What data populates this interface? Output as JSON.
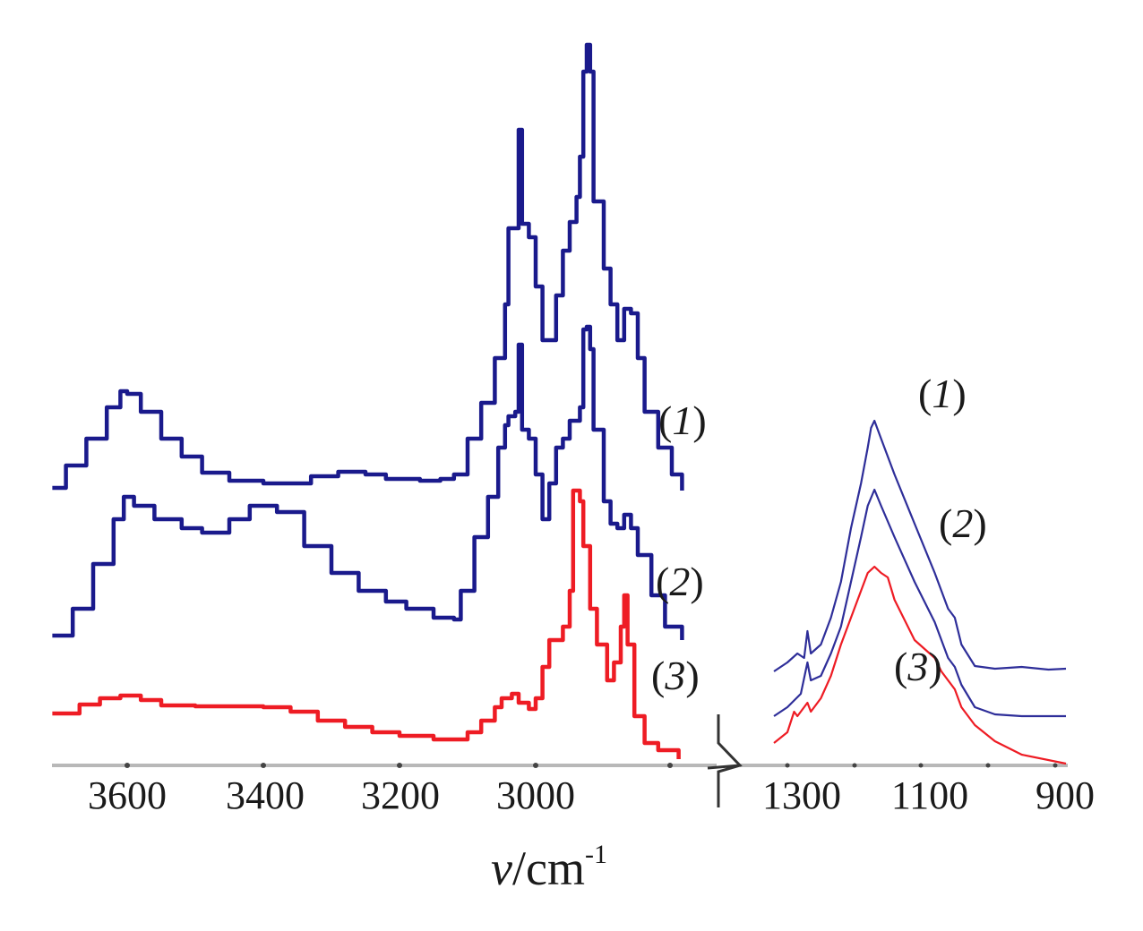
{
  "chart_data": {
    "type": "line",
    "title": "",
    "xlabel": "v/cm-1",
    "xlabel_parts": {
      "var": "v",
      "unit": "/cm",
      "exp": "-1"
    },
    "ylabel": "",
    "axis_break": true,
    "grid": false,
    "legend": "inline labels",
    "colors": {
      "series1": "#1a1a8c",
      "series2": "#1a1a8c",
      "series3": "#ee1c24",
      "right_blue": "#2e2e99",
      "axis": "#b8b8b8",
      "text": "#1a1a1a"
    },
    "panels": [
      {
        "name": "left",
        "xlim": [
          3710,
          2785
        ],
        "ticks": [
          3600,
          3400,
          3200,
          3000
        ],
        "tick_labels": [
          "3600",
          "3400",
          "3200",
          "3000"
        ],
        "minor_tick_at": [
          2800
        ],
        "series": [
          {
            "name": "(1)",
            "color": "#1a1a8c",
            "x": [
              3710,
              3690,
              3660,
              3630,
              3610,
              3600,
              3580,
              3550,
              3520,
              3490,
              3450,
              3400,
              3370,
              3330,
              3290,
              3250,
              3220,
              3170,
              3140,
              3120,
              3100,
              3080,
              3060,
              3045,
              3040,
              3030,
              3025,
              3020,
              3010,
              3000,
              2990,
              2970,
              2960,
              2950,
              2940,
              2935,
              2930,
              2925,
              2920,
              2915,
              2900,
              2890,
              2880,
              2870,
              2860,
              2850,
              2840,
              2820,
              2800,
              2785
            ],
            "y": [
              3.1,
              3.35,
              3.65,
              4.0,
              4.18,
              4.15,
              3.95,
              3.65,
              3.45,
              3.27,
              3.18,
              3.15,
              3.15,
              3.23,
              3.28,
              3.25,
              3.2,
              3.18,
              3.2,
              3.25,
              3.65,
              4.05,
              4.55,
              5.15,
              6.0,
              6.0,
              7.1,
              6.05,
              5.9,
              5.35,
              4.75,
              5.25,
              5.75,
              6.07,
              6.35,
              6.8,
              7.75,
              8.05,
              7.75,
              6.3,
              5.55,
              5.15,
              4.75,
              5.1,
              5.05,
              4.55,
              3.95,
              3.55,
              3.25,
              3.07
            ]
          },
          {
            "name": "(2)",
            "color": "#1a1a8c",
            "x": [
              3710,
              3680,
              3650,
              3620,
              3605,
              3590,
              3560,
              3520,
              3490,
              3450,
              3420,
              3400,
              3380,
              3340,
              3300,
              3260,
              3220,
              3190,
              3150,
              3120,
              3110,
              3090,
              3070,
              3055,
              3045,
              3040,
              3030,
              3025,
              3020,
              3010,
              3000,
              2990,
              2980,
              2970,
              2960,
              2950,
              2935,
              2930,
              2925,
              2920,
              2915,
              2900,
              2890,
              2880,
              2870,
              2860,
              2850,
              2830,
              2810,
              2785
            ],
            "y": [
              1.45,
              1.75,
              2.25,
              2.75,
              3.0,
              2.9,
              2.75,
              2.65,
              2.6,
              2.75,
              2.9,
              2.9,
              2.83,
              2.45,
              2.15,
              1.95,
              1.83,
              1.75,
              1.65,
              1.63,
              1.95,
              2.55,
              3.0,
              3.55,
              3.8,
              3.9,
              3.95,
              4.7,
              3.75,
              3.65,
              3.25,
              2.75,
              3.15,
              3.55,
              3.65,
              3.85,
              4.0,
              4.87,
              4.9,
              4.65,
              3.75,
              2.95,
              2.7,
              2.65,
              2.8,
              2.65,
              2.35,
              1.9,
              1.55,
              1.4
            ]
          },
          {
            "name": "(3)",
            "color": "#ee1c24",
            "x": [
              3710,
              3670,
              3640,
              3610,
              3580,
              3550,
              3500,
              3400,
              3360,
              3320,
              3280,
              3240,
              3200,
              3150,
              3120,
              3100,
              3080,
              3060,
              3050,
              3035,
              3025,
              3010,
              3000,
              2990,
              2980,
              2960,
              2950,
              2945,
              2935,
              2930,
              2920,
              2910,
              2895,
              2885,
              2875,
              2870,
              2865,
              2855,
              2840,
              2820,
              2790
            ],
            "y": [
              0.58,
              0.68,
              0.75,
              0.78,
              0.73,
              0.67,
              0.66,
              0.65,
              0.6,
              0.5,
              0.43,
              0.37,
              0.33,
              0.29,
              0.29,
              0.37,
              0.5,
              0.65,
              0.75,
              0.8,
              0.7,
              0.63,
              0.75,
              1.1,
              1.4,
              1.55,
              1.95,
              3.07,
              2.95,
              2.45,
              1.75,
              1.35,
              0.95,
              1.15,
              1.55,
              1.9,
              1.35,
              0.55,
              0.25,
              0.17,
              0.07
            ]
          }
        ]
      },
      {
        "name": "right",
        "xlim": [
          1320,
          884
        ],
        "ticks": [
          1300,
          1200,
          1100,
          1000,
          900
        ],
        "tick_labels": [
          "1300",
          "1100",
          "900"
        ],
        "series": [
          {
            "name": "(1)",
            "color": "#2e2e99",
            "x": [
              1320,
              1300,
              1285,
              1275,
              1270,
              1265,
              1250,
              1235,
              1220,
              1205,
              1190,
              1180,
              1175,
              1170,
              1160,
              1140,
              1110,
              1080,
              1060,
              1050,
              1040,
              1020,
              990,
              950,
              910,
              884
            ],
            "y": [
              1.05,
              1.15,
              1.25,
              1.2,
              1.5,
              1.25,
              1.35,
              1.65,
              2.05,
              2.65,
              3.15,
              3.55,
              3.77,
              3.85,
              3.65,
              3.25,
              2.7,
              2.15,
              1.75,
              1.65,
              1.35,
              1.11,
              1.08,
              1.1,
              1.07,
              1.08
            ]
          },
          {
            "name": "(2)",
            "color": "#2e2e99",
            "x": [
              1320,
              1300,
              1280,
              1270,
              1265,
              1250,
              1235,
              1220,
              1205,
              1190,
              1180,
              1170,
              1160,
              1140,
              1110,
              1080,
              1060,
              1050,
              1040,
              1020,
              990,
              950,
              884
            ],
            "y": [
              0.55,
              0.65,
              0.8,
              1.15,
              0.95,
              1.0,
              1.25,
              1.55,
              2.05,
              2.55,
              2.9,
              3.08,
              2.9,
              2.55,
              2.05,
              1.6,
              1.2,
              1.1,
              0.9,
              0.65,
              0.57,
              0.55,
              0.55
            ]
          },
          {
            "name": "(3)",
            "color": "#ee1c24",
            "x": [
              1320,
              1300,
              1290,
              1285,
              1270,
              1265,
              1250,
              1235,
              1220,
              1205,
              1190,
              1180,
              1170,
              1160,
              1150,
              1140,
              1110,
              1080,
              1070,
              1050,
              1040,
              1020,
              990,
              950,
              884
            ],
            "y": [
              0.25,
              0.37,
              0.6,
              0.55,
              0.7,
              0.6,
              0.75,
              1.0,
              1.35,
              1.65,
              1.95,
              2.15,
              2.22,
              2.15,
              2.1,
              1.85,
              1.4,
              1.2,
              1.05,
              0.85,
              0.65,
              0.45,
              0.27,
              0.12,
              0.02
            ]
          }
        ]
      }
    ],
    "annotations": [
      {
        "text": "(1)",
        "panel": "left",
        "near": "end of series 1"
      },
      {
        "text": "(2)",
        "panel": "left",
        "near": "end of series 2"
      },
      {
        "text": "(3)",
        "panel": "left",
        "near": "end of series 3"
      },
      {
        "text": "(1)",
        "panel": "right",
        "near": "above peak"
      },
      {
        "text": "(2)",
        "panel": "right",
        "near": "right of peak"
      },
      {
        "text": "(3)",
        "panel": "right",
        "near": "below peak"
      }
    ]
  },
  "labels": {
    "left_1": {
      "open": "(",
      "num": "1",
      "close": ")"
    },
    "left_2": {
      "open": "(",
      "num": "2",
      "close": ")"
    },
    "left_3": {
      "open": "(",
      "num": "3",
      "close": ")"
    },
    "right_1": {
      "open": "(",
      "num": "1",
      "close": ")"
    },
    "right_2": {
      "open": "(",
      "num": "2",
      "close": ")"
    },
    "right_3": {
      "open": "(",
      "num": "3",
      "close": ")"
    }
  },
  "axis": {
    "left_ticks": [
      "3600",
      "3400",
      "3200",
      "3000"
    ],
    "right_ticks": [
      "1300",
      "1100",
      "900"
    ],
    "xlabel_var": "v",
    "xlabel_unit": "/cm",
    "xlabel_exp": "-1"
  }
}
